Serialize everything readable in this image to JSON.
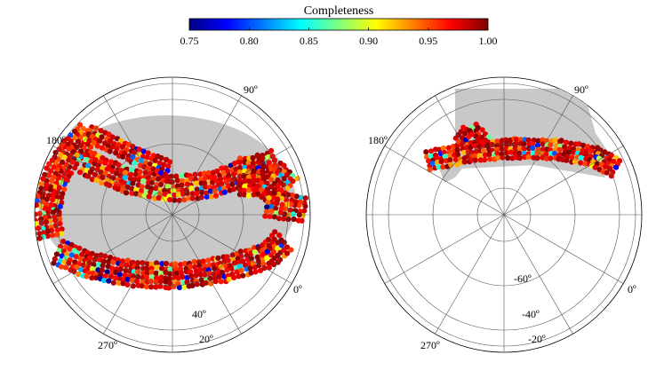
{
  "chart_data": [
    {
      "type": "heatmap",
      "title": "Completeness",
      "colorbar": {
        "label": "Completeness",
        "min": 0.75,
        "max": 1.0,
        "ticks": [
          "0.75",
          "0.80",
          "0.85",
          "0.90",
          "0.95",
          "1.00"
        ],
        "colors": [
          "#00007f",
          "#0000ff",
          "#007fff",
          "#00ffff",
          "#7fff7f",
          "#ffff00",
          "#ff7f00",
          "#ff0000",
          "#7f0000"
        ]
      }
    },
    {
      "type": "heatmap",
      "projection": "polar",
      "hemisphere": "north",
      "grid": true,
      "ra_labels": [
        "90º",
        "180º",
        "270º",
        "0º"
      ],
      "dec_labels": [
        "40º",
        "20º"
      ],
      "footprint_color": "#c8c8c8",
      "dominant_value": 0.98
    },
    {
      "type": "heatmap",
      "projection": "polar",
      "hemisphere": "south",
      "grid": true,
      "ra_labels": [
        "90º",
        "180º",
        "270º",
        "0º"
      ],
      "dec_labels": [
        "-60º",
        "-40º",
        "-20º"
      ],
      "footprint_color": "#c8c8c8",
      "dominant_value": 0.98
    }
  ]
}
